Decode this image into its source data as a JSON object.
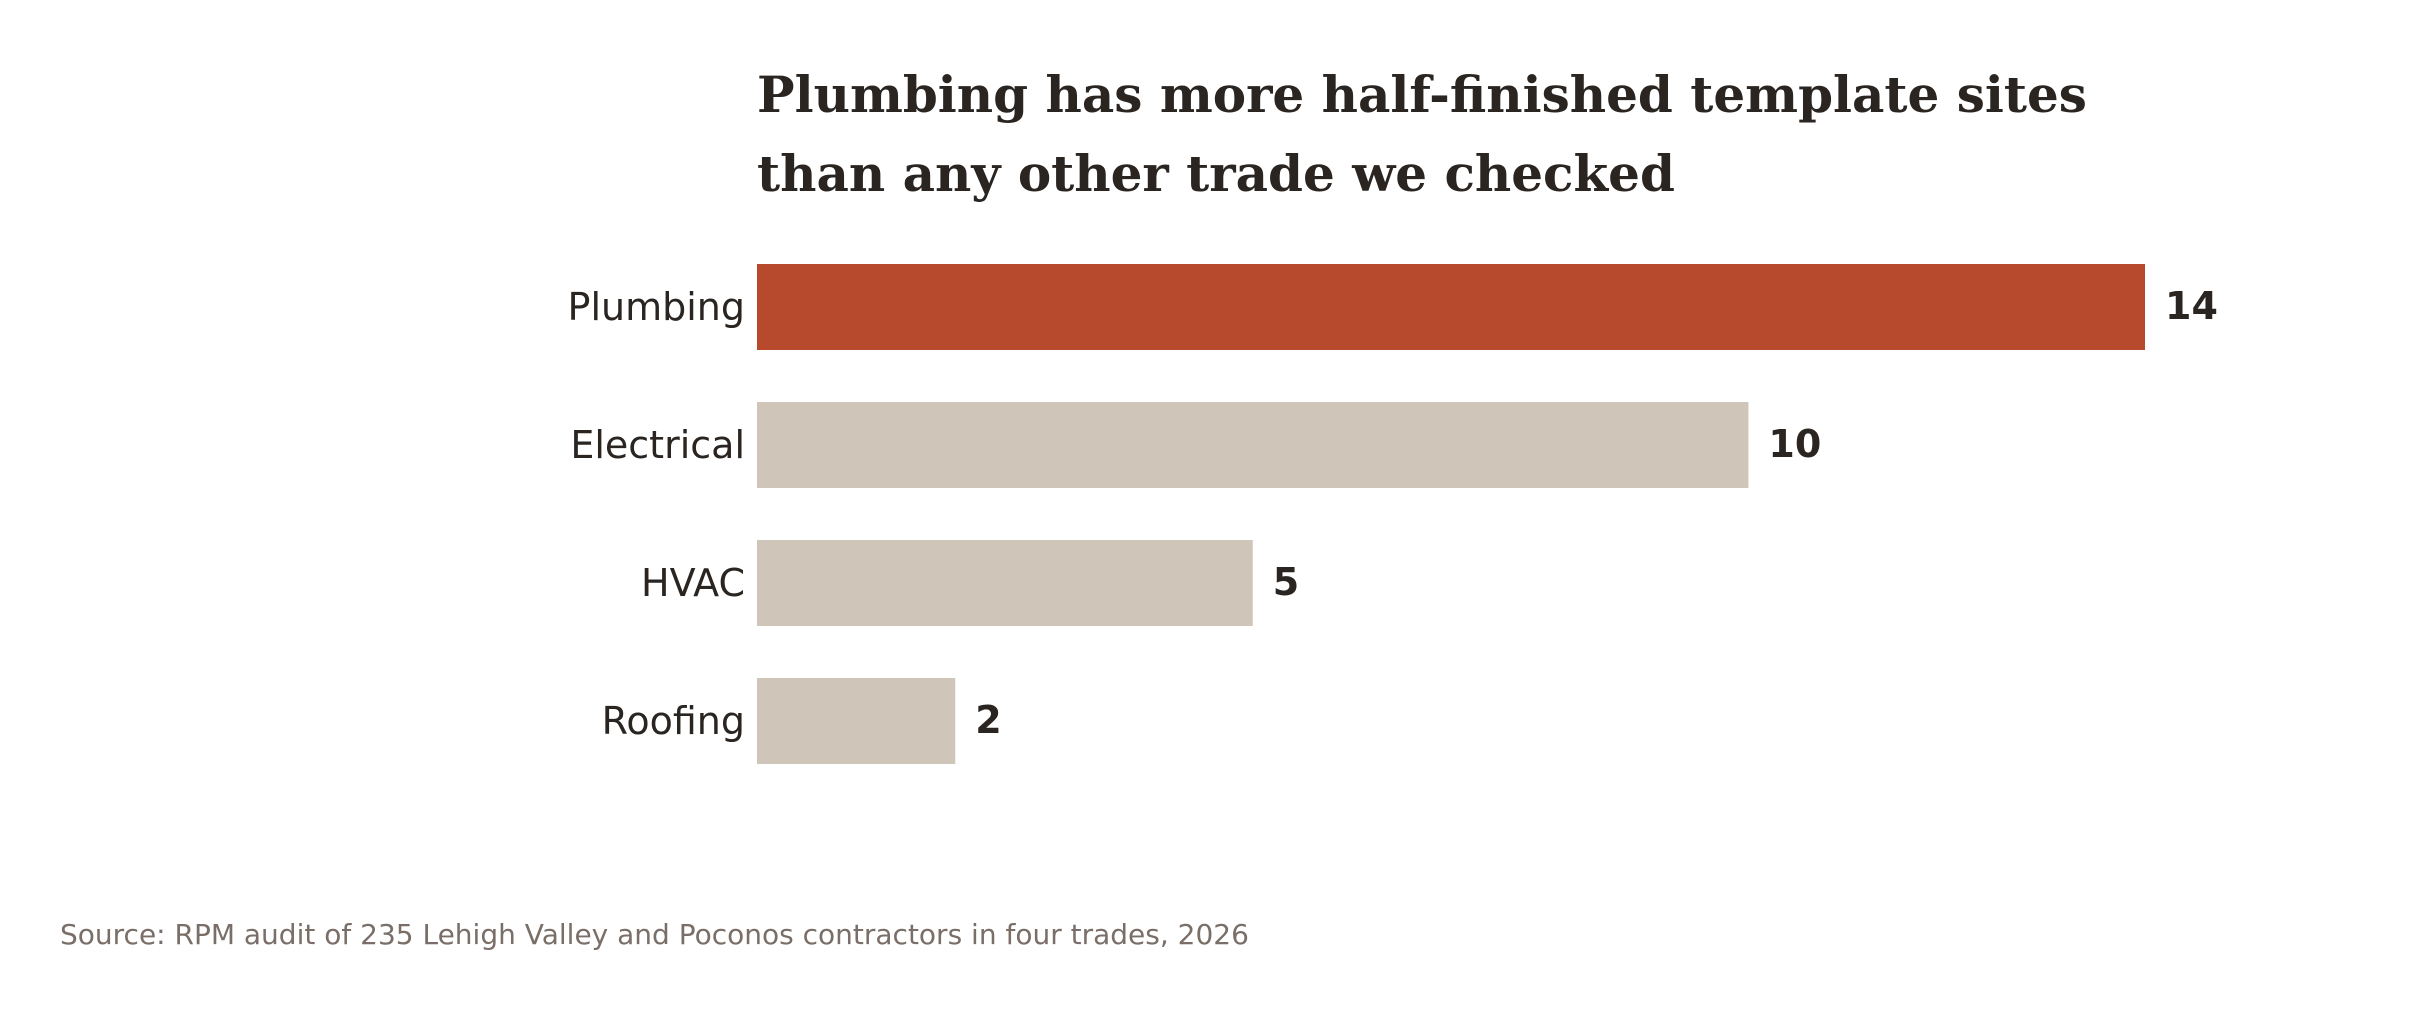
{
  "chart_data": {
    "type": "bar",
    "orientation": "horizontal",
    "title": "Plumbing has more half-finished template sites than any other trade we checked",
    "title_lines": [
      "Plumbing has more half-finished template sites",
      "than any other trade we checked"
    ],
    "categories": [
      "Plumbing",
      "Electrical",
      "HVAC",
      "Roofing"
    ],
    "values": [
      14,
      10,
      5,
      2
    ],
    "highlight": "Plumbing",
    "xlim": [
      0,
      14
    ],
    "grid": false,
    "legend": "none",
    "xlabel": "",
    "ylabel": ""
  },
  "source": "Source: RPM audit of 235 Lehigh Valley and Poconos contractors in four trades, 2026",
  "colors": {
    "highlight_bar": "#b7492c",
    "muted_bar": "#cfc5b9",
    "text": "#2a2521",
    "source_text": "#7a6f68",
    "background": "#ffffff"
  }
}
